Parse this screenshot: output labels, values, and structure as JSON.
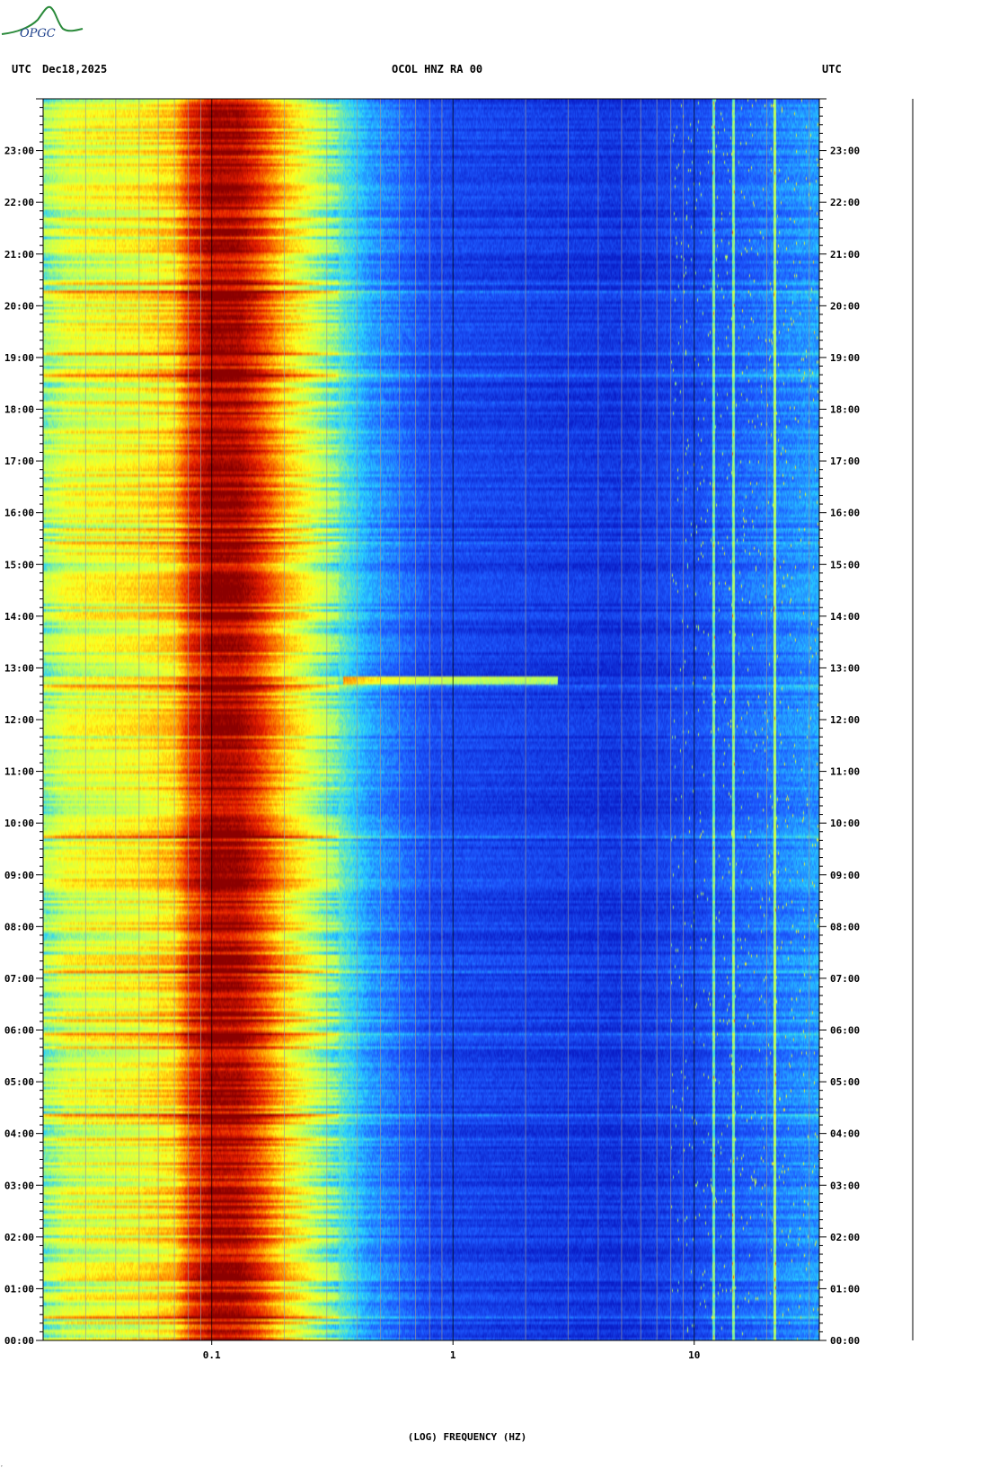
{
  "logo": {
    "text": "OPGC",
    "color": "#2a8a3a",
    "text_color": "#1a3d8a"
  },
  "header": {
    "left_label": "UTC",
    "date": "Dec18,2025",
    "title": "OCOL HNZ RA 00",
    "right_label": "UTC"
  },
  "chart_data": {
    "type": "heatmap",
    "title": "OCOL HNZ RA 00",
    "xlabel": "(LOG) FREQUENCY (HZ)",
    "ylabel": "UTC",
    "x_scale": "log",
    "xlim": [
      0.02,
      33
    ],
    "ylim": [
      "00:00",
      "24:00"
    ],
    "x_tick_labels": [
      {
        "value": 0.1,
        "label": "0.1"
      },
      {
        "value": 1,
        "label": "1"
      },
      {
        "value": 10,
        "label": "10"
      }
    ],
    "y_tick_labels": [
      "00:00",
      "01:00",
      "02:00",
      "03:00",
      "04:00",
      "05:00",
      "06:00",
      "07:00",
      "08:00",
      "09:00",
      "10:00",
      "11:00",
      "12:00",
      "13:00",
      "14:00",
      "15:00",
      "16:00",
      "17:00",
      "18:00",
      "19:00",
      "20:00",
      "21:00",
      "22:00",
      "23:00"
    ],
    "grid": true,
    "colormap": [
      "#0a1ec8",
      "#1e5aff",
      "#28d2ff",
      "#b4ff64",
      "#ffff1e",
      "#ff8c00",
      "#e61e00",
      "#8c0000"
    ],
    "power_profile": [
      {
        "freq_hz": 0.02,
        "level": 0.4
      },
      {
        "freq_hz": 0.025,
        "level": 0.5
      },
      {
        "freq_hz": 0.05,
        "level": 0.55
      },
      {
        "freq_hz": 0.07,
        "level": 0.62
      },
      {
        "freq_hz": 0.08,
        "level": 0.8
      },
      {
        "freq_hz": 0.1,
        "level": 0.95
      },
      {
        "freq_hz": 0.13,
        "level": 0.93
      },
      {
        "freq_hz": 0.16,
        "level": 0.8
      },
      {
        "freq_hz": 0.2,
        "level": 0.62
      },
      {
        "freq_hz": 0.3,
        "level": 0.4
      },
      {
        "freq_hz": 0.45,
        "level": 0.22
      },
      {
        "freq_hz": 0.8,
        "level": 0.1
      },
      {
        "freq_hz": 5,
        "level": 0.05
      },
      {
        "freq_hz": 10,
        "level": 0.1
      },
      {
        "freq_hz": 33,
        "level": 0.22
      }
    ],
    "features": [
      {
        "kind": "narrow-line",
        "freq_hz": 12,
        "color": "#bfe0ff"
      },
      {
        "kind": "narrow-line",
        "freq_hz": 14.5,
        "color": "#40ffd0"
      },
      {
        "kind": "narrow-line",
        "freq_hz": 21.5,
        "color": "#ff6a3d"
      },
      {
        "kind": "transient",
        "time": "12:46",
        "freq_hz_range": [
          0.35,
          2.7
        ]
      }
    ]
  }
}
